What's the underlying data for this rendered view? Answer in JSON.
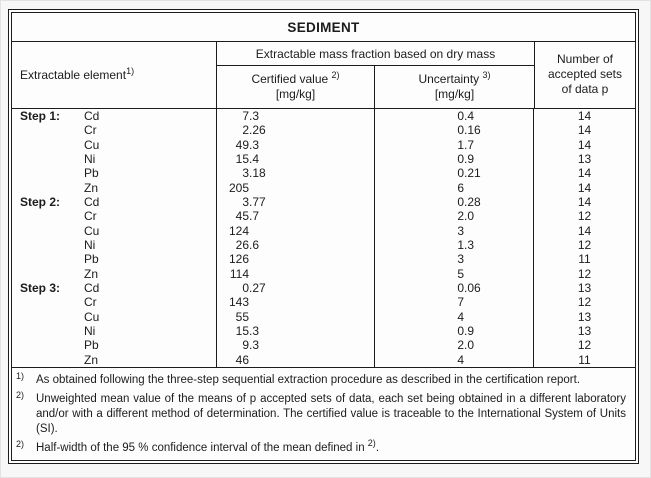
{
  "title": "SEDIMENT",
  "header": {
    "element_label": "Extractable element",
    "element_sup": "1)",
    "group_label": "Extractable mass fraction based on dry mass",
    "certified_label": "Certified value ",
    "certified_sup": "2)",
    "certified_unit": "[mg/kg]",
    "uncertainty_label": "Uncertainty ",
    "uncertainty_sup": "3)",
    "uncertainty_unit": "[mg/kg]",
    "sets_lines": [
      "Number of",
      "accepted sets",
      "of data p"
    ]
  },
  "rows": [
    {
      "step": "Step 1:",
      "element": "Cd",
      "certified": "7.3",
      "uncertainty": "0.4",
      "sets": "14"
    },
    {
      "step": "",
      "element": "Cr",
      "certified": "2.26",
      "uncertainty": "0.16",
      "sets": "14"
    },
    {
      "step": "",
      "element": "Cu",
      "certified": "49.3",
      "uncertainty": "1.7",
      "sets": "14"
    },
    {
      "step": "",
      "element": "Ni",
      "certified": "15.4",
      "uncertainty": "0.9",
      "sets": "13"
    },
    {
      "step": "",
      "element": "Pb",
      "certified": "3.18",
      "uncertainty": "0.21",
      "sets": "14"
    },
    {
      "step": "",
      "element": "Zn",
      "certified": "205",
      "uncertainty": "6",
      "sets": "14"
    },
    {
      "step": "Step 2:",
      "element": "Cd",
      "certified": "3.77",
      "uncertainty": "0.28",
      "sets": "14"
    },
    {
      "step": "",
      "element": "Cr",
      "certified": "45.7",
      "uncertainty": "2.0",
      "sets": "12"
    },
    {
      "step": "",
      "element": "Cu",
      "certified": "124",
      "uncertainty": "3",
      "sets": "14"
    },
    {
      "step": "",
      "element": "Ni",
      "certified": "26.6",
      "uncertainty": "1.3",
      "sets": "12"
    },
    {
      "step": "",
      "element": "Pb",
      "certified": "126",
      "uncertainty": "3",
      "sets": "11"
    },
    {
      "step": "",
      "element": "Zn",
      "certified": "114",
      "uncertainty": "5",
      "sets": "12"
    },
    {
      "step": "Step 3:",
      "element": "Cd",
      "certified": "0.27",
      "uncertainty": "0.06",
      "sets": "13"
    },
    {
      "step": "",
      "element": "Cr",
      "certified": "143",
      "uncertainty": "7",
      "sets": "12"
    },
    {
      "step": "",
      "element": "Cu",
      "certified": "55",
      "uncertainty": "4",
      "sets": "13"
    },
    {
      "step": "",
      "element": "Ni",
      "certified": "15.3",
      "uncertainty": "0.9",
      "sets": "13"
    },
    {
      "step": "",
      "element": "Pb",
      "certified": "9.3",
      "uncertainty": "2.0",
      "sets": "12"
    },
    {
      "step": "",
      "element": "Zn",
      "certified": "46",
      "uncertainty": "4",
      "sets": "11"
    }
  ],
  "footnotes": [
    {
      "marker": "1)",
      "justify": false,
      "segments": [
        {
          "text": "As obtained following the three-step sequential extraction procedure as described in the certification report."
        }
      ]
    },
    {
      "marker": "2)",
      "justify": true,
      "segments": [
        {
          "text": "Unweighted mean value of the means of p accepted sets of data, each set being obtained in a different laboratory and/or with a different method of determination. The certified value is traceable to the International System of Units (SI)."
        }
      ]
    },
    {
      "marker": "2)",
      "justify": false,
      "segments": [
        {
          "text": "Half-width of the 95 % confidence interval of the mean defined in "
        },
        {
          "sup": "2)"
        },
        {
          "text": "."
        }
      ]
    }
  ]
}
